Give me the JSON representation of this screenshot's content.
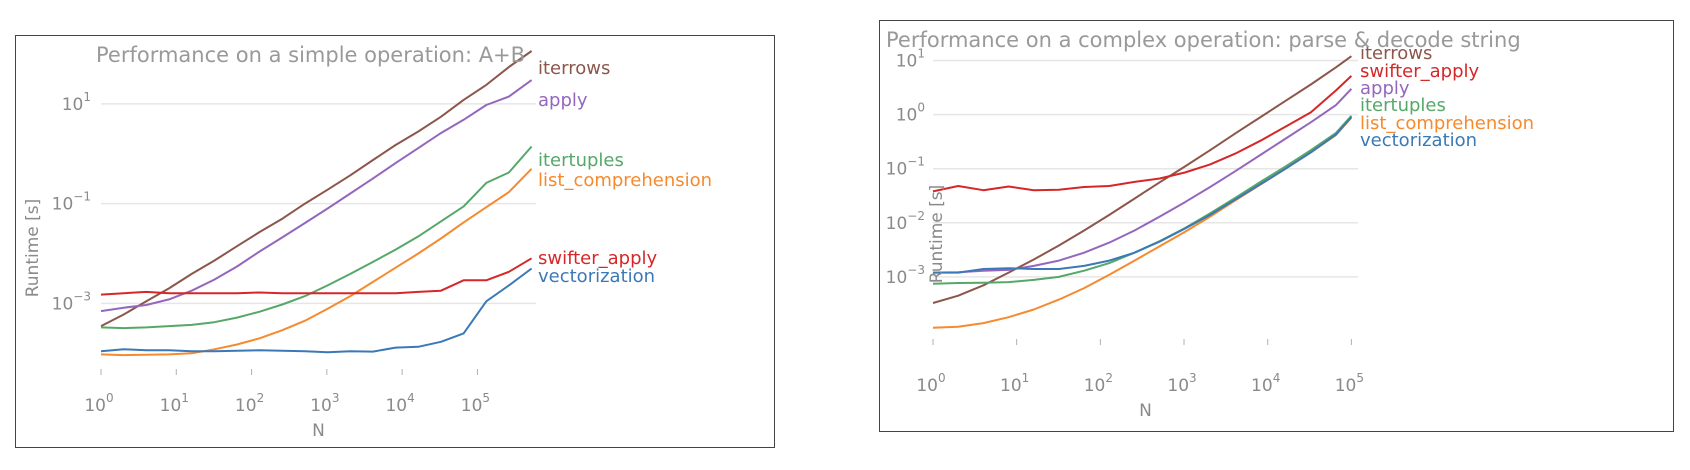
{
  "chart_data": [
    {
      "type": "line",
      "title": "Performance on a simple operation: A+B",
      "xlabel": "N",
      "ylabel": "Runtime [s]",
      "xscale": "log",
      "yscale": "log",
      "xlim": [
        1,
        600000
      ],
      "ylim": [
        7e-05,
        100
      ],
      "grid": "horizontal",
      "x_ticks": [
        {
          "base": "10",
          "exp": "0"
        },
        {
          "base": "10",
          "exp": "1"
        },
        {
          "base": "10",
          "exp": "2"
        },
        {
          "base": "10",
          "exp": "3"
        },
        {
          "base": "10",
          "exp": "4"
        },
        {
          "base": "10",
          "exp": "5"
        }
      ],
      "y_ticks": [
        {
          "base": "10",
          "exp": "1"
        },
        {
          "base": "10",
          "exp": "−1"
        },
        {
          "base": "10",
          "exp": "−3"
        }
      ],
      "x": [
        1,
        2,
        4,
        8,
        16,
        32,
        64,
        128,
        256,
        512,
        1024,
        2048,
        4096,
        8192,
        16384,
        32768,
        65536,
        131072,
        262144,
        524288
      ],
      "series": [
        {
          "name": "iterrows",
          "color": "#8c564b",
          "values": [
            0.00035,
            0.0006,
            0.0011,
            0.002,
            0.0039,
            0.0072,
            0.014,
            0.027,
            0.05,
            0.1,
            0.19,
            0.37,
            0.75,
            1.5,
            2.8,
            5.5,
            12,
            24,
            55,
            115
          ]
        },
        {
          "name": "apply",
          "color": "#9467bd",
          "values": [
            0.0007,
            0.00082,
            0.00093,
            0.0012,
            0.0018,
            0.003,
            0.0055,
            0.011,
            0.021,
            0.041,
            0.08,
            0.16,
            0.32,
            0.65,
            1.3,
            2.6,
            4.8,
            9.5,
            14,
            30
          ]
        },
        {
          "name": "itertuples",
          "color": "#55a868",
          "values": [
            0.00033,
            0.00032,
            0.00033,
            0.00035,
            0.00037,
            0.00042,
            0.00052,
            0.00068,
            0.00095,
            0.0014,
            0.0023,
            0.0039,
            0.0068,
            0.012,
            0.022,
            0.044,
            0.088,
            0.26,
            0.42,
            1.4
          ]
        },
        {
          "name": "list_comprehension",
          "color": "#f58a2e",
          "values": [
            9.5e-05,
            9.2e-05,
            9.3e-05,
            9.5e-05,
            0.0001,
            0.00012,
            0.00015,
            0.0002,
            0.00029,
            0.00045,
            0.00078,
            0.0014,
            0.0027,
            0.0052,
            0.01,
            0.02,
            0.042,
            0.085,
            0.17,
            0.5
          ]
        },
        {
          "name": "swifter_apply",
          "color": "#d62728",
          "values": [
            0.0015,
            0.0016,
            0.0017,
            0.0016,
            0.0016,
            0.0016,
            0.0016,
            0.00165,
            0.0016,
            0.0016,
            0.0016,
            0.0016,
            0.0016,
            0.0016,
            0.0017,
            0.0018,
            0.0029,
            0.0029,
            0.0043,
            0.008
          ]
        },
        {
          "name": "vectorization",
          "color": "#3b79b6",
          "values": [
            0.00011,
            0.00012,
            0.000115,
            0.000115,
            0.00011,
            0.00011,
            0.000112,
            0.000115,
            0.000112,
            0.00011,
            0.000105,
            0.00011,
            0.000108,
            0.00013,
            0.000135,
            0.00017,
            0.00025,
            0.0011,
            0.0023,
            0.005
          ]
        }
      ]
    },
    {
      "type": "line",
      "title": "Performance on a complex operation: parse & decode string",
      "xlabel": "N",
      "ylabel": "Runtime [s]",
      "xscale": "log",
      "yscale": "log",
      "xlim": [
        1,
        120000
      ],
      "ylim": [
        0.0001,
        15
      ],
      "grid": "horizontal",
      "x_ticks": [
        {
          "base": "10",
          "exp": "0"
        },
        {
          "base": "10",
          "exp": "1"
        },
        {
          "base": "10",
          "exp": "2"
        },
        {
          "base": "10",
          "exp": "3"
        },
        {
          "base": "10",
          "exp": "4"
        },
        {
          "base": "10",
          "exp": "5"
        }
      ],
      "y_ticks": [
        {
          "base": "10",
          "exp": "1"
        },
        {
          "base": "10",
          "exp": "0"
        },
        {
          "base": "10",
          "exp": "−1"
        },
        {
          "base": "10",
          "exp": "−2"
        },
        {
          "base": "10",
          "exp": "−3"
        }
      ],
      "x": [
        1,
        2,
        4,
        8,
        16,
        32,
        64,
        128,
        256,
        512,
        1024,
        2048,
        4096,
        8192,
        16384,
        32768,
        65536,
        100000
      ],
      "series": [
        {
          "name": "iterrows",
          "color": "#8c564b",
          "values": [
            0.00033,
            0.00045,
            0.0007,
            0.0012,
            0.0021,
            0.0038,
            0.0072,
            0.014,
            0.028,
            0.056,
            0.11,
            0.22,
            0.45,
            0.9,
            1.8,
            3.6,
            7.5,
            12
          ]
        },
        {
          "name": "swifter_apply",
          "color": "#d62728",
          "values": [
            0.038,
            0.048,
            0.04,
            0.047,
            0.04,
            0.041,
            0.046,
            0.048,
            0.057,
            0.066,
            0.085,
            0.12,
            0.19,
            0.33,
            0.6,
            1.1,
            2.8,
            5.2
          ]
        },
        {
          "name": "apply",
          "color": "#9467bd",
          "values": [
            0.0012,
            0.00122,
            0.0013,
            0.00135,
            0.0016,
            0.002,
            0.0028,
            0.0043,
            0.0072,
            0.013,
            0.024,
            0.046,
            0.09,
            0.18,
            0.36,
            0.72,
            1.5,
            3
          ]
        },
        {
          "name": "itertuples",
          "color": "#55a868",
          "values": [
            0.00075,
            0.00077,
            0.00078,
            0.0008,
            0.00088,
            0.001,
            0.0013,
            0.0018,
            0.0028,
            0.0046,
            0.008,
            0.015,
            0.029,
            0.057,
            0.11,
            0.22,
            0.46,
            0.95
          ]
        },
        {
          "name": "list_comprehension",
          "color": "#f58a2e",
          "values": [
            0.000115,
            0.00012,
            0.00014,
            0.00018,
            0.00025,
            0.00038,
            0.00062,
            0.0011,
            0.002,
            0.0037,
            0.0068,
            0.013,
            0.026,
            0.051,
            0.1,
            0.2,
            0.42,
            0.88
          ]
        },
        {
          "name": "vectorization",
          "color": "#3b79b6",
          "values": [
            0.0012,
            0.0012,
            0.0014,
            0.00145,
            0.0014,
            0.0014,
            0.0016,
            0.002,
            0.0028,
            0.0045,
            0.0078,
            0.014,
            0.027,
            0.052,
            0.1,
            0.2,
            0.43,
            0.9
          ]
        }
      ]
    }
  ]
}
